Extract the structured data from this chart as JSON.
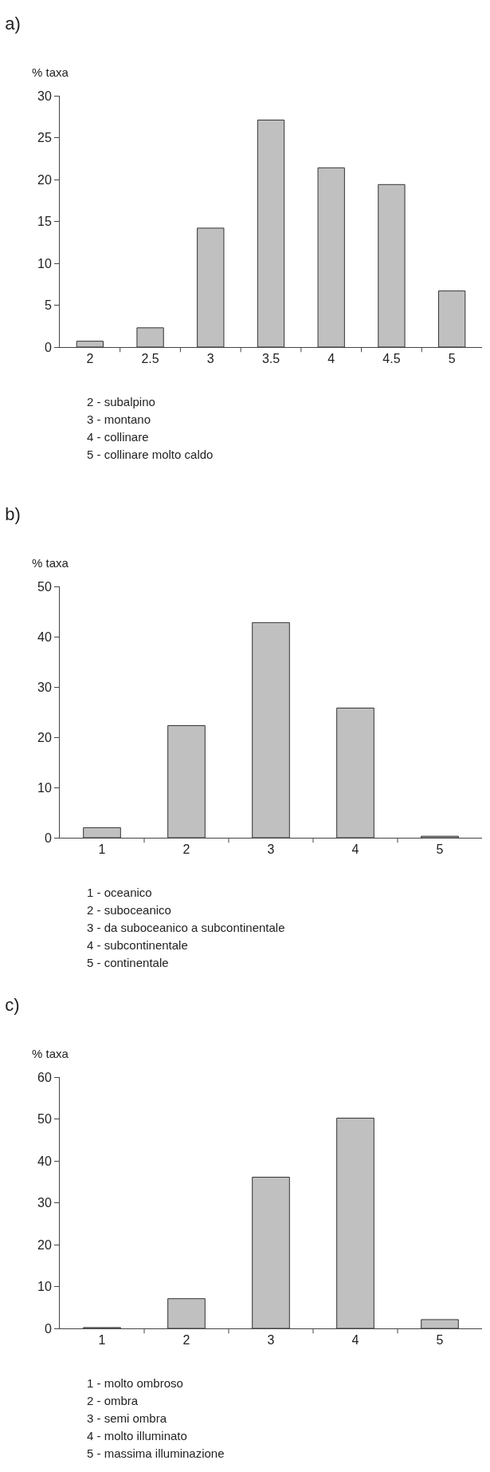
{
  "chart_data": [
    {
      "type": "bar",
      "title": "a)",
      "ylabel": "% taxa",
      "categories": [
        "2",
        "2.5",
        "3",
        "3.5",
        "4",
        "4.5",
        "5"
      ],
      "values": [
        0.7,
        2.3,
        14.2,
        27.1,
        21.4,
        19.4,
        6.7
      ],
      "color": "#c0c0c0",
      "ylim": [
        0,
        30
      ],
      "yticks": [
        0,
        5,
        10,
        15,
        20,
        25,
        30
      ],
      "grid": false,
      "legend": false,
      "annotations": [
        "2 - subalpino",
        "3 - montano",
        "4 - collinare",
        "5 - collinare molto caldo"
      ]
    },
    {
      "type": "bar",
      "title": "b)",
      "ylabel": "% taxa",
      "categories": [
        "1",
        "2",
        "3",
        "4",
        "5"
      ],
      "values": [
        2.0,
        22.3,
        42.8,
        25.8,
        0.3
      ],
      "color": "#c0c0c0",
      "ylim": [
        0,
        50
      ],
      "yticks": [
        0,
        10,
        20,
        30,
        40,
        50
      ],
      "grid": false,
      "legend": false,
      "annotations": [
        "1 - oceanico",
        "2 - suboceanico",
        "3 - da suboceanico a subcontinentale",
        "4 - subcontinentale",
        "5 - continentale"
      ]
    },
    {
      "type": "bar",
      "title": "c)",
      "ylabel": "% taxa",
      "categories": [
        "1",
        "2",
        "3",
        "4",
        "5"
      ],
      "values": [
        0.2,
        7.1,
        36.1,
        50.2,
        2.1
      ],
      "color": "#c0c0c0",
      "ylim": [
        0,
        60
      ],
      "yticks": [
        0,
        10,
        20,
        30,
        40,
        50,
        60
      ],
      "grid": false,
      "legend": false,
      "annotations": [
        "1 - molto ombroso",
        "2 - ombra",
        "3 - semi ombra",
        "4 - molto illuminato",
        "5 - massima illuminazione"
      ]
    }
  ]
}
